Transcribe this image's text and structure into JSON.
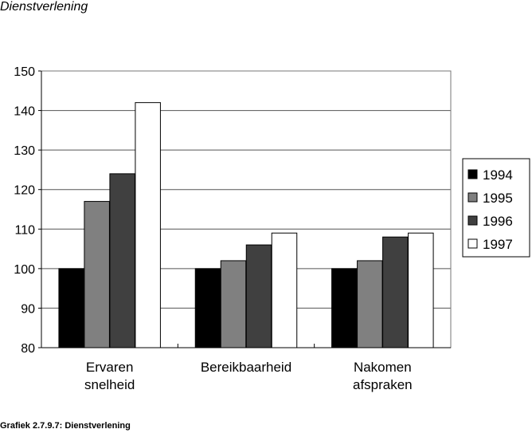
{
  "header": {
    "title": "Dienstverlening"
  },
  "footer": {
    "caption": "Grafiek 2.7.9.7:  Dienstverlening"
  },
  "chart_data": {
    "type": "bar",
    "title": "Dienstverlening",
    "xlabel": "",
    "ylabel": "",
    "ylim": [
      80,
      150
    ],
    "yticks": [
      80,
      90,
      100,
      110,
      120,
      130,
      140,
      150
    ],
    "grid": true,
    "legend": "right",
    "categories": [
      [
        "Ervaren",
        "snelheid"
      ],
      [
        "Bereikbaarheid"
      ],
      [
        "Nakomen",
        "afspraken"
      ]
    ],
    "series": [
      {
        "name": "1994",
        "color": "#000000",
        "values": [
          100,
          100,
          100
        ]
      },
      {
        "name": "1995",
        "color": "#808080",
        "values": [
          117,
          102,
          102
        ]
      },
      {
        "name": "1996",
        "color": "#404040",
        "values": [
          124,
          106,
          108
        ]
      },
      {
        "name": "1997",
        "color": "#ffffff",
        "values": [
          142,
          109,
          109
        ]
      }
    ]
  }
}
